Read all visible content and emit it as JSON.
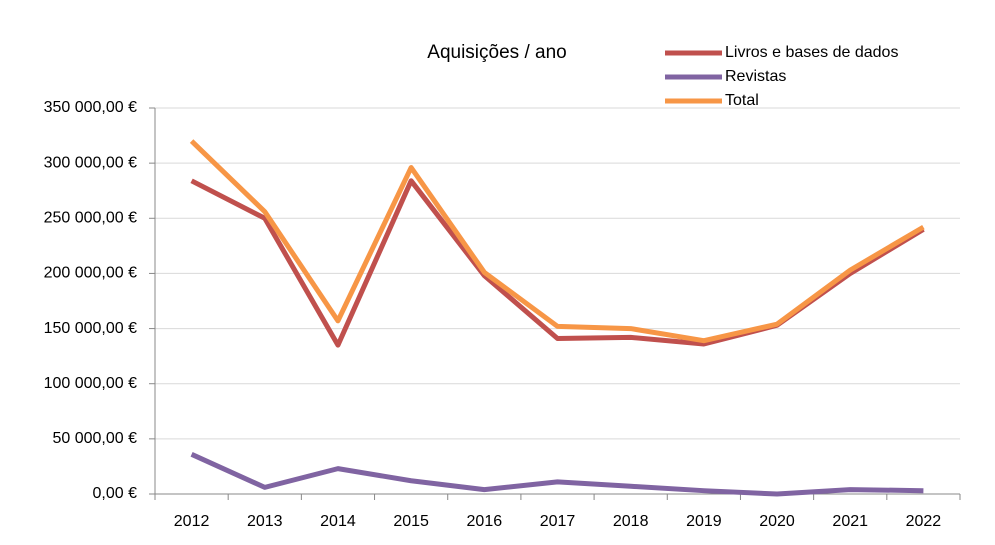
{
  "chart_data": {
    "type": "line",
    "title": "Aquisições / ano",
    "categories": [
      "2012",
      "2013",
      "2014",
      "2015",
      "2016",
      "2017",
      "2018",
      "2019",
      "2020",
      "2021",
      "2022"
    ],
    "series": [
      {
        "name": "Livros e bases de dados",
        "color": "#c0504d",
        "values": [
          284000,
          250000,
          135000,
          284000,
          198000,
          141000,
          142000,
          136000,
          153000,
          200000,
          240000
        ]
      },
      {
        "name": "Revistas",
        "color": "#8064a2",
        "values": [
          36000,
          6000,
          23000,
          12000,
          4000,
          11000,
          7000,
          3000,
          0,
          4000,
          3000
        ]
      },
      {
        "name": "Total",
        "color": "#f79646",
        "values": [
          320000,
          256000,
          157000,
          296000,
          201000,
          152000,
          150000,
          139000,
          154000,
          203000,
          242000
        ]
      }
    ],
    "ylim": [
      0,
      350000
    ],
    "yticks": [
      {
        "value": 0,
        "label": "0,00 €"
      },
      {
        "value": 50000,
        "label": "50 000,00 €"
      },
      {
        "value": 100000,
        "label": "100 000,00 €"
      },
      {
        "value": 150000,
        "label": "150 000,00 €"
      },
      {
        "value": 200000,
        "label": "200 000,00 €"
      },
      {
        "value": 250000,
        "label": "250 000,00 €"
      },
      {
        "value": 300000,
        "label": "300 000,00 €"
      },
      {
        "value": 350000,
        "label": "350 000,00 €"
      }
    ],
    "grid": true,
    "legend": "top-right"
  }
}
